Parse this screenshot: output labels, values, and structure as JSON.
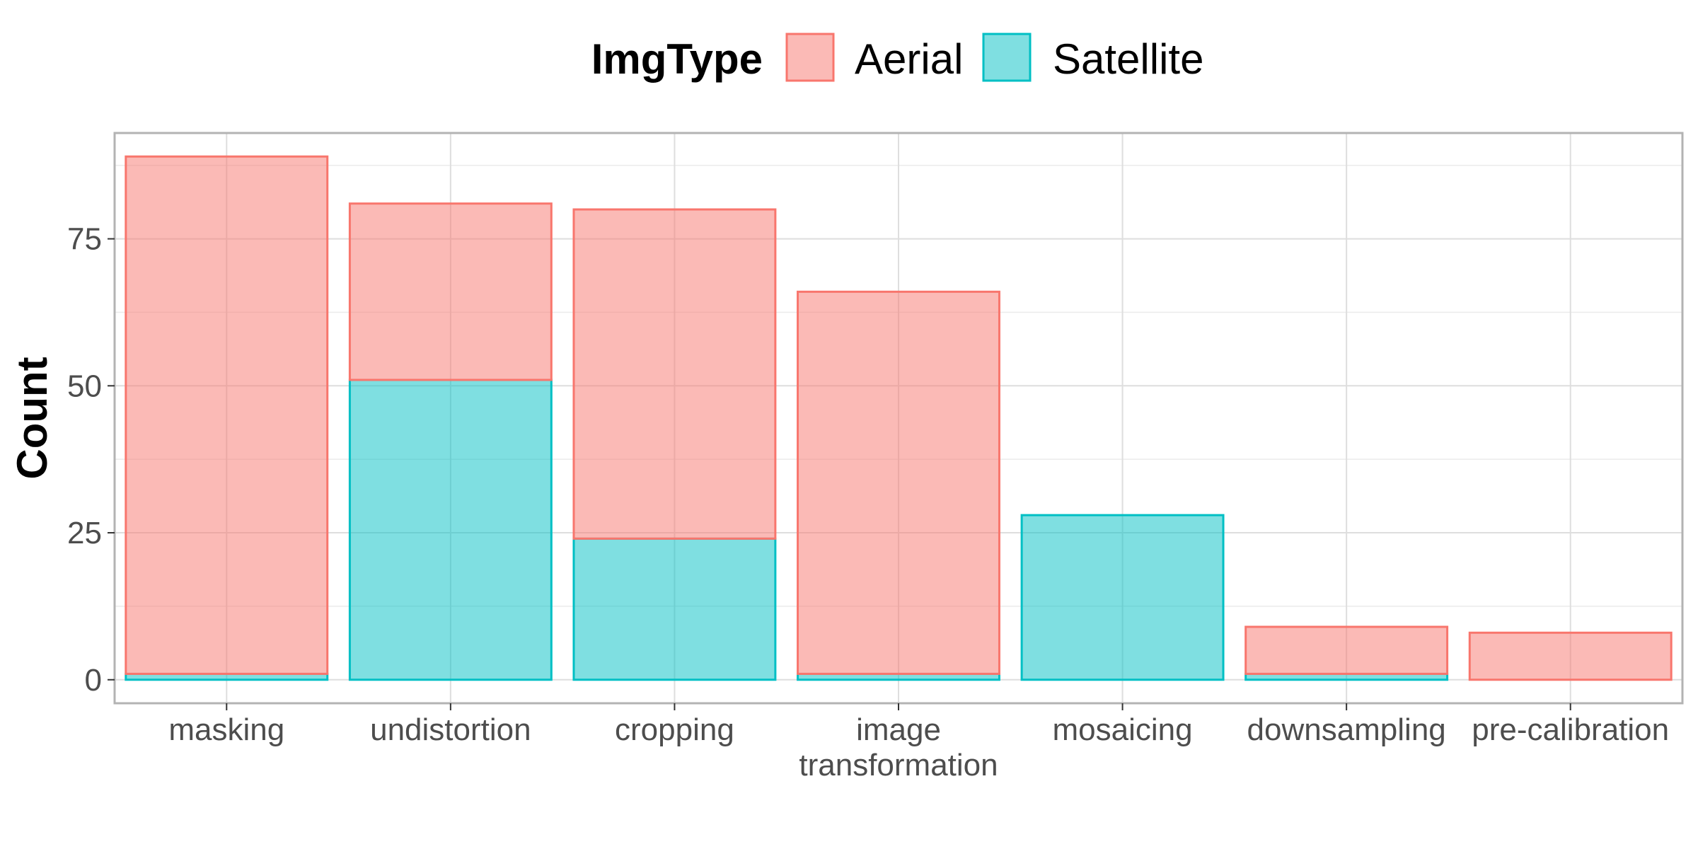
{
  "chart_data": {
    "type": "bar",
    "stacked": true,
    "categories": [
      "masking",
      "undistortion",
      "cropping",
      "image transformation",
      "mosaicing",
      "downsampling",
      "pre-calibration"
    ],
    "category_labels": [
      [
        "masking"
      ],
      [
        "undistortion"
      ],
      [
        "cropping"
      ],
      [
        "image",
        "transformation"
      ],
      [
        "mosaicing"
      ],
      [
        "downsampling"
      ],
      [
        "pre-calibration"
      ]
    ],
    "series": [
      {
        "name": "Satellite",
        "values": [
          1,
          51,
          24,
          1,
          28,
          1,
          0
        ]
      },
      {
        "name": "Aerial",
        "values": [
          88,
          30,
          56,
          65,
          0,
          8,
          8
        ]
      }
    ],
    "legend": {
      "title": "ImgType",
      "position": "top",
      "entries": [
        "Aerial",
        "Satellite"
      ]
    },
    "title": "",
    "xlabel": "",
    "ylabel": "Count",
    "ylim": [
      -4,
      93
    ],
    "yticks": [
      0,
      25,
      50,
      75
    ],
    "grid": true,
    "colors": {
      "Aerial": {
        "fill": "#F8766D",
        "stroke": "#F8766D"
      },
      "Satellite": {
        "fill": "#00BFC4",
        "stroke": "#00BFC4"
      }
    }
  }
}
